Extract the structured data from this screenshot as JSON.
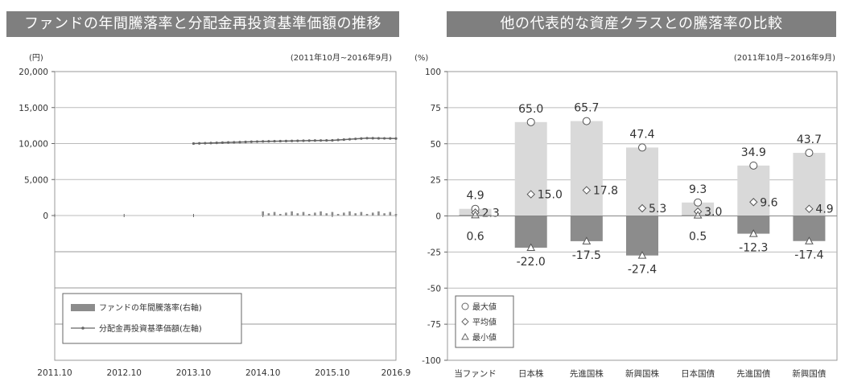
{
  "chart_data": [
    {
      "type": "line",
      "title": "ファンドの年間騰落率と分配金再投資基準価額の推移",
      "unit_label": "(円)",
      "period": "(2011年10月~2016年9月)",
      "ylim": [
        0,
        20000
      ],
      "y_ticks": [
        "20,000",
        "15,000",
        "10,000",
        "5,000",
        "0"
      ],
      "x_ticks": [
        "2011.10",
        "2012.10",
        "2013.10",
        "2014.10",
        "2015.10",
        "2016.9"
      ],
      "legend": {
        "bar": "ファンドの年間騰落率(右軸)",
        "line": "分配金再投資基準価額(左軸)"
      },
      "series": [
        {
          "name": "分配金再投資基準価額(左軸)",
          "x": [
            "2013.10",
            "2014.04",
            "2014.10",
            "2015.04",
            "2015.10",
            "2016.04",
            "2016.9"
          ],
          "values": [
            10000,
            10150,
            10300,
            10380,
            10450,
            10750,
            10700
          ]
        }
      ]
    },
    {
      "type": "bar",
      "title": "他の代表的な資産クラスとの騰落率の比較",
      "unit_label": "(%)",
      "period": "(2011年10月~2016年9月)",
      "ylim": [
        -100,
        100
      ],
      "y_ticks": [
        "100",
        "75",
        "50",
        "25",
        "0",
        "-25",
        "-50",
        "-75",
        "-100"
      ],
      "categories": [
        "当ファンド",
        "日本株",
        "先進国株",
        "新興国株",
        "日本国債",
        "先進国債",
        "新興国債"
      ],
      "legend": {
        "max": "最大値",
        "avg": "平均値",
        "min": "最小値"
      },
      "series": [
        {
          "name": "最大値",
          "values": [
            4.9,
            65.0,
            65.7,
            47.4,
            9.3,
            34.9,
            43.7
          ],
          "labels": [
            "4.9",
            "65.0",
            "65.7",
            "47.4",
            "9.3",
            "34.9",
            "43.7"
          ]
        },
        {
          "name": "平均値",
          "values": [
            2.3,
            15.0,
            17.8,
            5.3,
            3.0,
            9.6,
            4.9
          ],
          "labels": [
            "2.3",
            "15.0",
            "17.8",
            "5.3",
            "3.0",
            "9.6",
            "4.9"
          ]
        },
        {
          "name": "最小値",
          "values": [
            0.6,
            -22.0,
            -17.5,
            -27.4,
            0.5,
            -12.3,
            -17.4
          ],
          "labels": [
            "0.6",
            "-22.0",
            "-17.5",
            "-27.4",
            "0.5",
            "-12.3",
            "-17.4"
          ]
        }
      ]
    }
  ],
  "colors": {
    "banner": "#7f7f7f",
    "bar_max": "#d9d9d9",
    "bar_min": "#8c8c8c",
    "line": "#666666"
  }
}
